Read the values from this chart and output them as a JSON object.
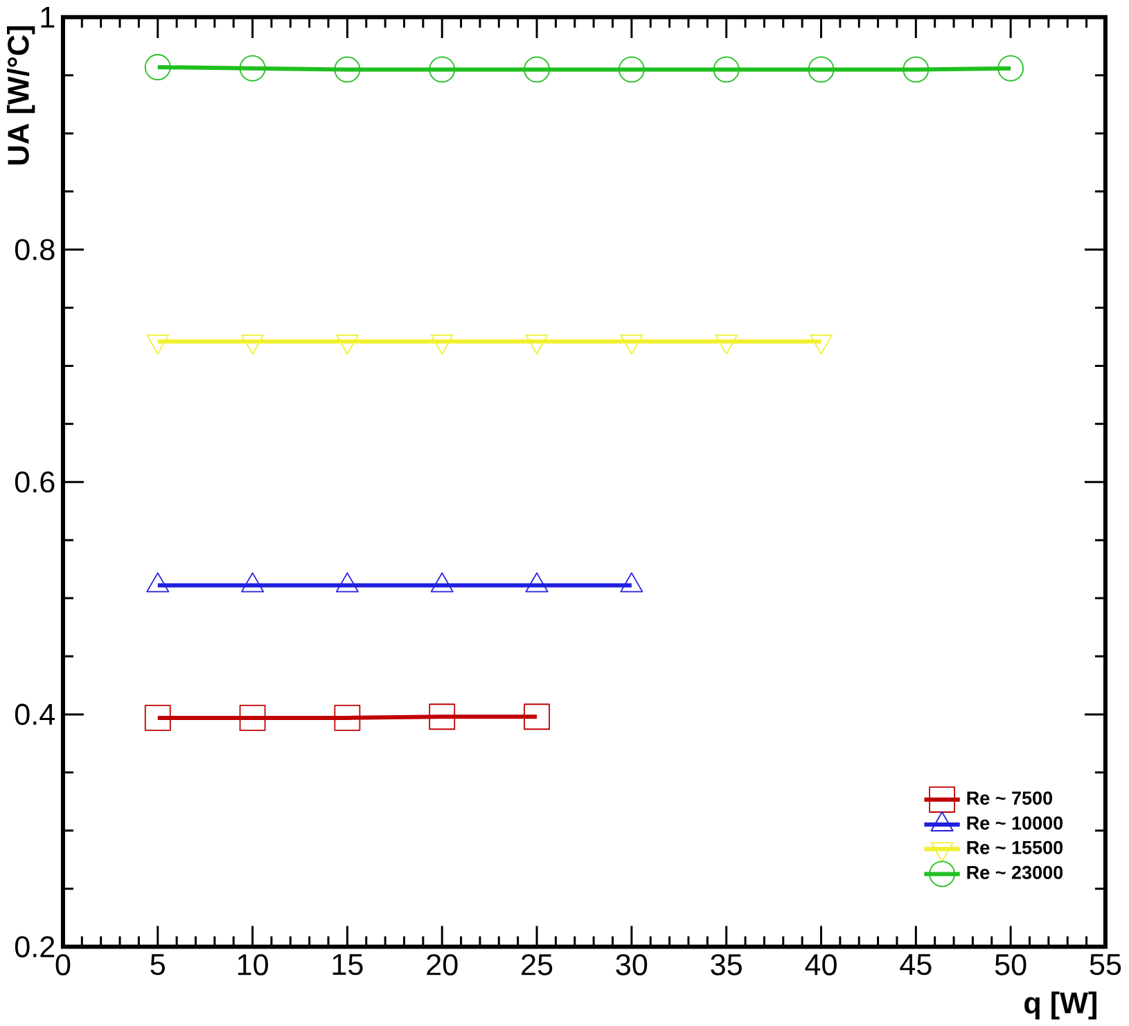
{
  "chart_data": {
    "type": "line",
    "xlabel": "q [W]",
    "ylabel": "UA [W/°C]",
    "x": [
      5,
      10,
      15,
      20,
      25,
      30,
      35,
      40,
      45,
      50
    ],
    "series": [
      {
        "name": "Re ~ 7500",
        "color": "#c00000",
        "marker": "square",
        "values": [
          0.397,
          0.397,
          0.397,
          0.398,
          0.398,
          null,
          null,
          null,
          null,
          null
        ]
      },
      {
        "name": "Re ~ 10000",
        "color": "#2020e0",
        "marker": "triangle",
        "values": [
          0.511,
          0.511,
          0.511,
          0.511,
          0.511,
          0.511,
          null,
          null,
          null,
          null
        ]
      },
      {
        "name": "Re ~ 15500",
        "color": "#f0f030",
        "marker": "triangle-down",
        "values": [
          0.721,
          0.721,
          0.721,
          0.721,
          0.721,
          0.721,
          0.721,
          0.721,
          null,
          null
        ]
      },
      {
        "name": "Re ~ 23000",
        "color": "#20c020",
        "marker": "circle",
        "values": [
          0.957,
          0.956,
          0.955,
          0.955,
          0.955,
          0.955,
          0.955,
          0.955,
          0.955,
          0.956
        ]
      }
    ],
    "xlim": [
      0,
      55
    ],
    "xticks": [
      0,
      5,
      10,
      15,
      20,
      25,
      30,
      35,
      40,
      45,
      50,
      55
    ],
    "ylim": [
      0.2,
      1
    ],
    "yticks": [
      0.2,
      0.4,
      0.6,
      0.8,
      1
    ],
    "grid": false,
    "legend": "bottom right",
    "line_style": "solid"
  }
}
